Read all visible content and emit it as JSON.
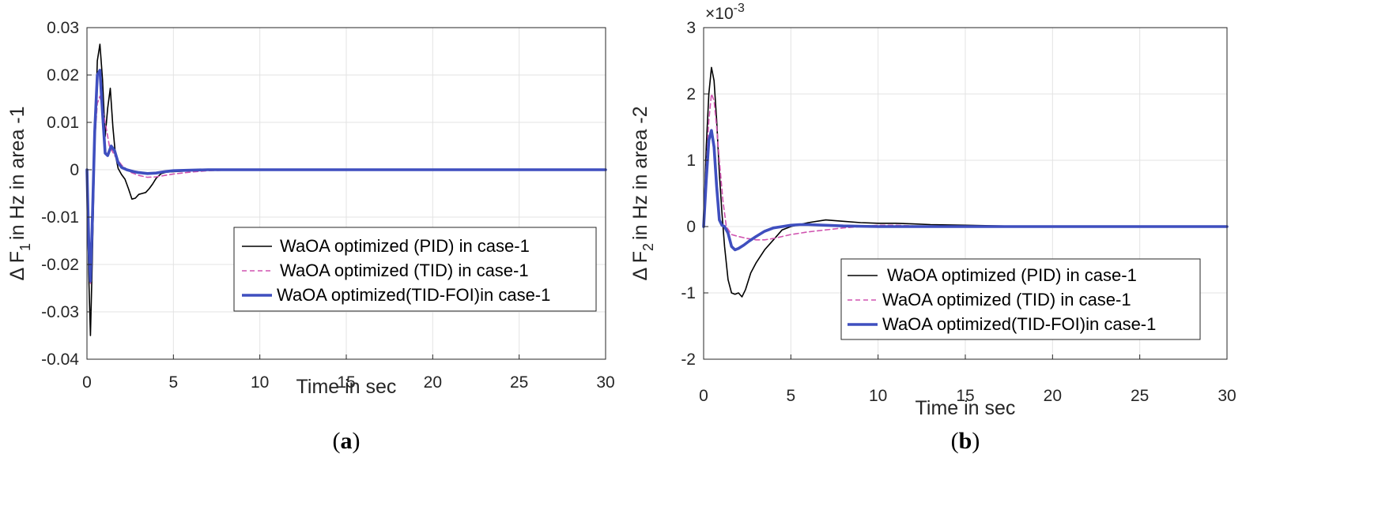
{
  "chart_data": [
    {
      "type": "line",
      "panel_label": "a",
      "xlabel": "Time in sec",
      "ylabel": {
        "prefix": "Δ F",
        "subscript": "1",
        "suffix": "in Hz in area -1"
      },
      "xlim": [
        0,
        30
      ],
      "ylim": [
        -0.04,
        0.03
      ],
      "xticks": [
        "0",
        "5",
        "10",
        "15",
        "20",
        "25",
        "30"
      ],
      "xtick_values": [
        0,
        5,
        10,
        15,
        20,
        25,
        30
      ],
      "yticks": [
        "0.03",
        "0.02",
        "0.01",
        "0",
        "-0.01",
        "-0.02",
        "-0.03",
        "-0.04"
      ],
      "ytick_values": [
        0.03,
        0.02,
        0.01,
        0,
        -0.01,
        -0.02,
        -0.03,
        -0.04
      ],
      "grid": true,
      "legend_position": "center-right",
      "series": [
        {
          "name": "WaOA optimized (PID) in case-1",
          "style": "solid-thin",
          "color": "#000000",
          "x": [
            0,
            0.1,
            0.2,
            0.3,
            0.45,
            0.6,
            0.75,
            0.9,
            1.05,
            1.2,
            1.35,
            1.5,
            1.65,
            1.8,
            2.0,
            2.2,
            2.4,
            2.6,
            2.8,
            3.0,
            3.2,
            3.4,
            3.6,
            3.8,
            4.0,
            4.3,
            4.6,
            5.0,
            5.5,
            6.0,
            7.0,
            8.0,
            9.0,
            10,
            15,
            20,
            25,
            30
          ],
          "y": [
            0,
            -0.022,
            -0.035,
            -0.02,
            0.005,
            0.023,
            0.0265,
            0.019,
            0.007,
            0.013,
            0.0172,
            0.009,
            0.003,
            0.0003,
            -0.001,
            -0.002,
            -0.004,
            -0.0062,
            -0.006,
            -0.0052,
            -0.005,
            -0.0048,
            -0.004,
            -0.003,
            -0.0018,
            -0.0008,
            -0.0005,
            -0.0004,
            -0.0003,
            -0.0002,
            -0.0001,
            0,
            0,
            0,
            0,
            0,
            0,
            0
          ]
        },
        {
          "name": "WaOA optimized (TID) in case-1",
          "style": "dashed",
          "color": "#d054b0",
          "x": [
            0,
            0.1,
            0.2,
            0.3,
            0.45,
            0.6,
            0.75,
            0.9,
            1.1,
            1.3,
            1.6,
            2.0,
            2.5,
            3.0,
            3.5,
            4.0,
            4.5,
            5.0,
            6.0,
            7.0,
            8.0,
            10,
            15,
            20,
            25,
            30
          ],
          "y": [
            0,
            -0.015,
            -0.024,
            -0.012,
            0.006,
            0.014,
            0.0155,
            0.013,
            0.009,
            0.005,
            0.003,
            0.001,
            -0.0005,
            -0.0012,
            -0.0016,
            -0.0015,
            -0.0012,
            -0.0009,
            -0.0005,
            -0.0002,
            -0.0001,
            0,
            0,
            0,
            0,
            0
          ]
        },
        {
          "name": "WaOA optimized(TID-FOI)in case-1",
          "style": "solid-thick",
          "color": "#3f4fbf",
          "x": [
            0,
            0.1,
            0.2,
            0.3,
            0.45,
            0.6,
            0.75,
            0.9,
            1.05,
            1.2,
            1.4,
            1.6,
            1.8,
            2.0,
            2.3,
            2.7,
            3.0,
            3.5,
            4.0,
            4.5,
            5.0,
            6.0,
            7.0,
            8.0,
            10,
            15,
            20,
            25,
            30
          ],
          "y": [
            0,
            -0.015,
            -0.0235,
            -0.012,
            0.008,
            0.02,
            0.021,
            0.012,
            0.0035,
            0.003,
            0.005,
            0.004,
            0.0015,
            0.0005,
            0,
            -0.0004,
            -0.0006,
            -0.0008,
            -0.0007,
            -0.0004,
            -0.0002,
            -0.0001,
            0,
            0,
            0,
            0,
            0,
            0,
            0
          ]
        }
      ]
    },
    {
      "type": "line",
      "panel_label": "b",
      "xlabel": "Time in sec",
      "ylabel": {
        "prefix": "Δ F",
        "subscript": "2",
        "suffix": "in Hz in area -2"
      },
      "y_multiplier": {
        "base": "×10",
        "exponent": "-3"
      },
      "xlim": [
        0,
        30
      ],
      "ylim": [
        -2,
        3
      ],
      "xticks": [
        "0",
        "5",
        "10",
        "15",
        "20",
        "25",
        "30"
      ],
      "xtick_values": [
        0,
        5,
        10,
        15,
        20,
        25,
        30
      ],
      "yticks": [
        "3",
        "2",
        "1",
        "0",
        "-1",
        "-2"
      ],
      "ytick_values": [
        3,
        2,
        1,
        0,
        -1,
        -2
      ],
      "grid": true,
      "legend_position": "lower-right",
      "series": [
        {
          "name": "WaOA optimized (PID) in case-1",
          "style": "solid-thin",
          "color": "#000000",
          "x": [
            0,
            0.15,
            0.3,
            0.45,
            0.6,
            0.75,
            0.9,
            1.05,
            1.2,
            1.4,
            1.6,
            1.8,
            2.0,
            2.2,
            2.4,
            2.7,
            3.0,
            3.5,
            4.0,
            4.5,
            5.0,
            6.0,
            7.0,
            8.0,
            9.0,
            10,
            11,
            12,
            13,
            15,
            17,
            20,
            25,
            30
          ],
          "y": [
            0,
            1.2,
            2.0,
            2.4,
            2.2,
            1.6,
            0.8,
            0.2,
            -0.3,
            -0.8,
            -1.0,
            -1.02,
            -1.0,
            -1.06,
            -0.95,
            -0.7,
            -0.55,
            -0.35,
            -0.2,
            -0.05,
            0.0,
            0.06,
            0.1,
            0.08,
            0.06,
            0.05,
            0.05,
            0.04,
            0.03,
            0.02,
            0.01,
            0,
            0,
            0
          ]
        },
        {
          "name": "WaOA optimized (TID) in case-1",
          "style": "dashed",
          "color": "#d054b0",
          "x": [
            0,
            0.15,
            0.3,
            0.45,
            0.6,
            0.75,
            0.9,
            1.1,
            1.3,
            1.6,
            2.0,
            2.5,
            3.0,
            3.5,
            4.0,
            4.5,
            5.0,
            6.0,
            7.0,
            8.0,
            9.0,
            10,
            11,
            12,
            15,
            20,
            25,
            30
          ],
          "y": [
            0,
            0.9,
            1.6,
            2.0,
            1.9,
            1.5,
            1.0,
            0.4,
            0.0,
            -0.12,
            -0.15,
            -0.18,
            -0.2,
            -0.2,
            -0.18,
            -0.15,
            -0.12,
            -0.08,
            -0.05,
            -0.02,
            0.0,
            0.02,
            0.02,
            0.01,
            0.0,
            0,
            0,
            0
          ]
        },
        {
          "name": "WaOA optimized(TID-FOI)in case-1",
          "style": "solid-thick",
          "color": "#3f4fbf",
          "x": [
            0,
            0.15,
            0.3,
            0.45,
            0.6,
            0.75,
            0.9,
            1.05,
            1.2,
            1.4,
            1.6,
            1.8,
            2.0,
            2.3,
            2.6,
            3.0,
            3.5,
            4.0,
            4.5,
            5.0,
            5.5,
            6.0,
            7.0,
            8.0,
            10,
            15,
            20,
            25,
            30
          ],
          "y": [
            0,
            0.7,
            1.3,
            1.45,
            1.2,
            0.6,
            0.1,
            0.02,
            0.0,
            -0.1,
            -0.3,
            -0.35,
            -0.33,
            -0.28,
            -0.22,
            -0.15,
            -0.07,
            -0.02,
            0.0,
            0.02,
            0.03,
            0.03,
            0.02,
            0.01,
            0.0,
            0,
            0,
            0,
            0
          ]
        }
      ]
    }
  ]
}
